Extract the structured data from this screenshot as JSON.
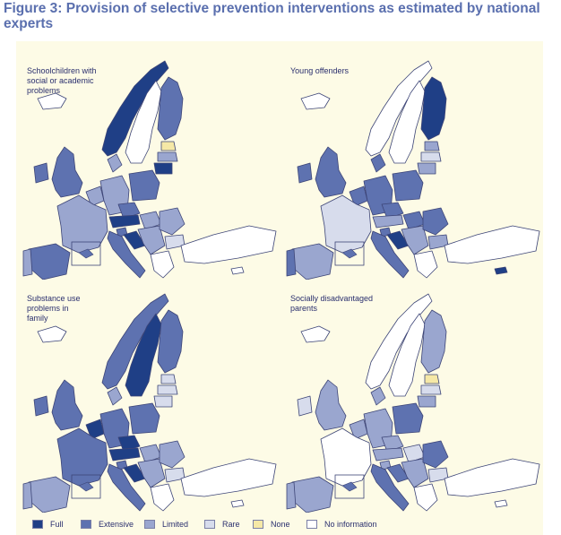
{
  "figure": {
    "title": "Figure 3: Provision of selective prevention interventions as estimated by national experts"
  },
  "colors": {
    "full": "#1f3f86",
    "extensive": "#5e72b0",
    "limited": "#9aa6cf",
    "rare": "#d7dcec",
    "none": "#f5e8a6",
    "no_information": "#ffffff",
    "outline": "#3d4577",
    "background": "#fdfbe6"
  },
  "maps": [
    {
      "title": "Schoolchildren with\nsocial or academic\nproblems",
      "countries": {
        "norway": "full",
        "sweden": "no_information",
        "finland": "extensive",
        "iceland": "no_information",
        "ireland": "extensive",
        "uk": "extensive",
        "france": "limited",
        "spain": "extensive",
        "portugal": "limited",
        "benelux": "limited",
        "germany": "limited",
        "denmark": "limited",
        "poland": "extensive",
        "czech": "extensive",
        "austria": "full",
        "italy": "extensive",
        "baltic_n": "none",
        "baltic_m": "limited",
        "baltic_s": "full",
        "hungary": "limited",
        "balkans": "limited",
        "romania": "limited",
        "bulgaria": "rare",
        "greece": "no_information",
        "turkey": "no_information",
        "cyprus": "no_information",
        "slovenia": "extensive",
        "croatia": "full"
      }
    },
    {
      "title": "Young offenders",
      "countries": {
        "norway": "no_information",
        "sweden": "no_information",
        "finland": "full",
        "iceland": "no_information",
        "ireland": "extensive",
        "uk": "extensive",
        "france": "rare",
        "spain": "limited",
        "portugal": "extensive",
        "benelux": "extensive",
        "germany": "extensive",
        "denmark": "extensive",
        "poland": "extensive",
        "czech": "extensive",
        "austria": "limited",
        "italy": "extensive",
        "baltic_n": "limited",
        "baltic_m": "rare",
        "baltic_s": "limited",
        "hungary": "extensive",
        "balkans": "limited",
        "romania": "extensive",
        "bulgaria": "limited",
        "greece": "no_information",
        "turkey": "no_information",
        "cyprus": "full",
        "slovenia": "extensive",
        "croatia": "full"
      }
    },
    {
      "title": "Substance use\nproblems in\nfamily",
      "countries": {
        "norway": "extensive",
        "sweden": "full",
        "finland": "extensive",
        "iceland": "no_information",
        "ireland": "extensive",
        "uk": "extensive",
        "france": "extensive",
        "spain": "limited",
        "portugal": "limited",
        "benelux": "full",
        "germany": "extensive",
        "denmark": "limited",
        "poland": "extensive",
        "czech": "full",
        "austria": "full",
        "italy": "extensive",
        "baltic_n": "rare",
        "baltic_m": "rare",
        "baltic_s": "rare",
        "hungary": "limited",
        "balkans": "limited",
        "romania": "limited",
        "bulgaria": "rare",
        "greece": "no_information",
        "turkey": "no_information",
        "cyprus": "no_information",
        "slovenia": "extensive",
        "croatia": "full"
      }
    },
    {
      "title": "Socially disadvantaged\nparents",
      "countries": {
        "norway": "no_information",
        "sweden": "no_information",
        "finland": "limited",
        "iceland": "no_information",
        "ireland": "rare",
        "uk": "limited",
        "france": "no_information",
        "spain": "limited",
        "portugal": "limited",
        "benelux": "limited",
        "germany": "limited",
        "denmark": "limited",
        "poland": "extensive",
        "czech": "limited",
        "austria": "limited",
        "italy": "extensive",
        "baltic_n": "none",
        "baltic_m": "rare",
        "baltic_s": "limited",
        "hungary": "rare",
        "balkans": "limited",
        "romania": "extensive",
        "bulgaria": "rare",
        "greece": "no_information",
        "turkey": "no_information",
        "cyprus": "no_information",
        "slovenia": "limited",
        "croatia": "extensive"
      }
    }
  ],
  "legend": [
    {
      "key": "full",
      "label": "Full"
    },
    {
      "key": "extensive",
      "label": "Extensive"
    },
    {
      "key": "limited",
      "label": "Limited"
    },
    {
      "key": "rare",
      "label": "Rare"
    },
    {
      "key": "none",
      "label": "None"
    },
    {
      "key": "no_information",
      "label": "No information"
    }
  ]
}
